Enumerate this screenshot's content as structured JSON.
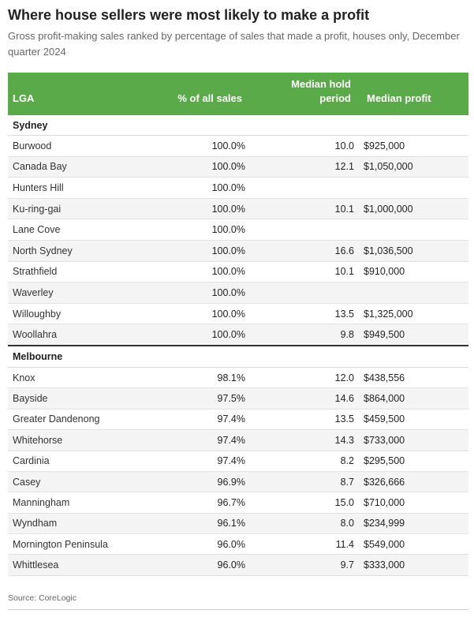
{
  "title": "Where house sellers were most likely to make a profit",
  "subtitle": "Gross profit-making sales ranked by percentage of sales that made a profit, houses only, December quarter 2024",
  "source": "Source: CoreLogic",
  "colors": {
    "header_bg": "#5aaa4a",
    "header_text": "#ffffff",
    "stripe": "#f4f4f4"
  },
  "chart_data": {
    "type": "table",
    "title": "Where house sellers were most likely to make a profit",
    "subtitle": "Gross profit-making sales ranked by percentage of sales that made a profit, houses only, December quarter 2024",
    "columns": [
      "LGA",
      "% of all sales",
      "Median hold period",
      "Median profit"
    ],
    "groups": [
      {
        "name": "Sydney",
        "rows": [
          [
            "Burwood",
            "100.0%",
            "10.0",
            "$925,000"
          ],
          [
            "Canada Bay",
            "100.0%",
            "12.1",
            "$1,050,000"
          ],
          [
            "Hunters Hill",
            "100.0%",
            "",
            ""
          ],
          [
            "Ku-ring-gai",
            "100.0%",
            "10.1",
            "$1,000,000"
          ],
          [
            "Lane Cove",
            "100.0%",
            "",
            ""
          ],
          [
            "North Sydney",
            "100.0%",
            "16.6",
            "$1,036,500"
          ],
          [
            "Strathfield",
            "100.0%",
            "10.1",
            "$910,000"
          ],
          [
            "Waverley",
            "100.0%",
            "",
            ""
          ],
          [
            "Willoughby",
            "100.0%",
            "13.5",
            "$1,325,000"
          ],
          [
            "Woollahra",
            "100.0%",
            "9.8",
            "$949,500"
          ]
        ]
      },
      {
        "name": "Melbourne",
        "rows": [
          [
            "Knox",
            "98.1%",
            "12.0",
            "$438,556"
          ],
          [
            "Bayside",
            "97.5%",
            "14.6",
            "$864,000"
          ],
          [
            "Greater Dandenong",
            "97.4%",
            "13.5",
            "$459,500"
          ],
          [
            "Whitehorse",
            "97.4%",
            "14.3",
            "$733,000"
          ],
          [
            "Cardinia",
            "97.4%",
            "8.2",
            "$295,500"
          ],
          [
            "Casey",
            "96.9%",
            "8.7",
            "$326,666"
          ],
          [
            "Manningham",
            "96.7%",
            "15.0",
            "$710,000"
          ],
          [
            "Wyndham",
            "96.1%",
            "8.0",
            "$234,999"
          ],
          [
            "Mornington Peninsula",
            "96.0%",
            "11.4",
            "$549,000"
          ],
          [
            "Whittlesea",
            "96.0%",
            "9.7",
            "$333,000"
          ]
        ]
      }
    ]
  }
}
